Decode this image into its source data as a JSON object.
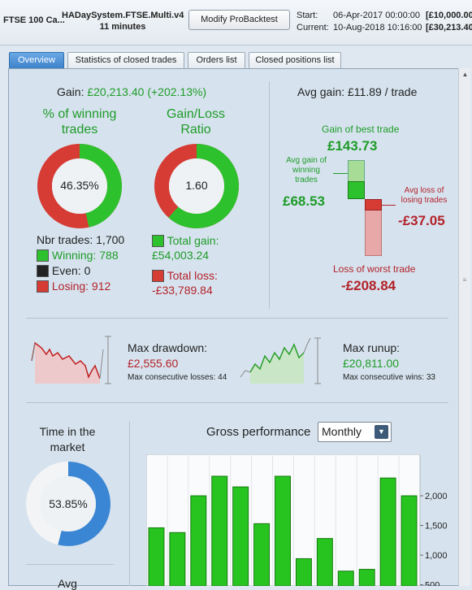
{
  "header": {
    "instrument": "FTSE 100 Ca...",
    "system_name": "HADaySystem.FTSE.Multi.v4",
    "duration": "11 minutes",
    "modify_button": "Modify ProBacktest",
    "start_label": "Start:",
    "start_date": "06-Apr-2017 00:00:00",
    "start_value": "[£10,000.00",
    "current_label": "Current:",
    "current_date": "10-Aug-2018 10:16:00",
    "current_value": "[£30,213.40"
  },
  "tabs": [
    {
      "label": "Overview",
      "active": true
    },
    {
      "label": "Statistics of closed trades",
      "active": false
    },
    {
      "label": "Orders list",
      "active": false
    },
    {
      "label": "Closed positions list",
      "active": false
    }
  ],
  "overview": {
    "gain_label": "Gain:",
    "gain_value": "£20,213.40 (+202.13%)",
    "winning_title": "% of winning trades",
    "winning_pct": "46.35%",
    "winning_fraction": 0.4635,
    "ratio_title": "Gain/Loss Ratio",
    "ratio_value": "1.60",
    "ratio_fraction": 0.615,
    "nbr_trades": "Nbr trades: 1,700",
    "winning_count": "Winning: 788",
    "even_count": "Even: 0",
    "losing_count": "Losing: 912",
    "total_gain_label": "Total gain:",
    "total_gain_value": "£54,003.24",
    "total_loss_label": "Total loss:",
    "total_loss_value": "-£33,789.84",
    "avg_gain_title": "Avg gain: £11.89 / trade",
    "best_trade_label": "Gain of best trade",
    "best_trade_value": "£143.73",
    "avg_win_label_1": "Avg gain of",
    "avg_win_label_2": "winning",
    "avg_win_label_3": "trades",
    "avg_win_value": "£68.53",
    "avg_loss_label_1": "Avg loss of",
    "avg_loss_label_2": "losing trades",
    "avg_loss_value": "-£37.05",
    "worst_trade_label": "Loss of worst trade",
    "worst_trade_value": "-£208.84",
    "drawdown_label": "Max drawdown:",
    "drawdown_value": "£2,555.60",
    "consec_losses": "Max consecutive losses: 44",
    "runup_label": "Max runup:",
    "runup_value": "£20,811.00",
    "consec_wins": "Max consecutive wins: 33",
    "time_market_title": "Time in the market",
    "time_market_pct": "53.85%",
    "time_market_fraction": 0.5385,
    "avg_label": "Avg",
    "gross_title": "Gross performance",
    "gross_period": "Monthly"
  },
  "colors": {
    "green": "#1e9b28",
    "red": "#b3222a",
    "blue": "#3a86d4"
  },
  "chart_data": {
    "type": "bar",
    "ytick_labels": [
      "2,000",
      "1,500",
      "1,000",
      "500"
    ],
    "ytick_values": [
      2000,
      1500,
      1000,
      500
    ],
    "values": [
      1460,
      1380,
      2000,
      2330,
      2150,
      1530,
      2330,
      940,
      1280,
      730,
      760,
      2300,
      2000
    ],
    "ylim": [
      480,
      2700
    ]
  }
}
